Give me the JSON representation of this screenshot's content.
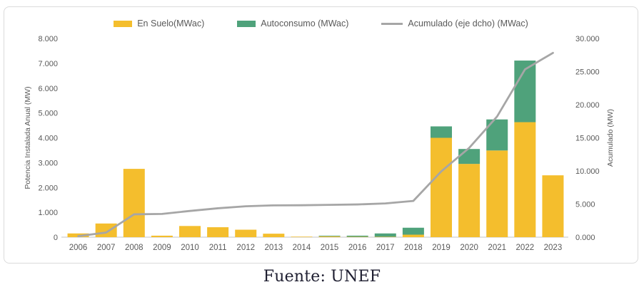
{
  "footer": {
    "text": "Fuente: UNEF"
  },
  "legend": {
    "items": [
      {
        "label": "En Suelo(MWac)",
        "swatch": "bar",
        "color": "#F4BE2D"
      },
      {
        "label": "Autoconsumo (MWac)",
        "swatch": "bar",
        "color": "#4FA27B"
      },
      {
        "label": "Acumulado (eje dcho) (MWac)",
        "swatch": "line",
        "color": "#A6A6A6"
      }
    ]
  },
  "chart_data": {
    "type": "bar",
    "subtype": "stacked-bars-with-secondary-axis-line",
    "title": "",
    "categories": [
      "2006",
      "2007",
      "2008",
      "2009",
      "2010",
      "2011",
      "2012",
      "2013",
      "2014",
      "2015",
      "2016",
      "2017",
      "2018",
      "2019",
      "2020",
      "2021",
      "2022",
      "2023"
    ],
    "series": [
      {
        "name": "En Suelo(MWac)",
        "type": "bar",
        "axis": "left",
        "color": "#F4BE2D",
        "values": [
          150,
          550,
          2750,
          60,
          450,
          400,
          300,
          140,
          20,
          35,
          15,
          15,
          100,
          4000,
          2950,
          3490,
          4630,
          2490
        ]
      },
      {
        "name": "Autoconsumo (MWac)",
        "type": "bar",
        "axis": "left",
        "color": "#4FA27B",
        "values": [
          0,
          0,
          0,
          0,
          0,
          0,
          0,
          0,
          0,
          25,
          45,
          135,
          280,
          460,
          600,
          1250,
          2480,
          0
        ]
      },
      {
        "name": "Acumulado (eje dcho) (MWac)",
        "type": "line",
        "axis": "right",
        "color": "#A6A6A6",
        "values": [
          150,
          700,
          3450,
          3510,
          3960,
          4360,
          4660,
          4800,
          4820,
          4880,
          4940,
          5090,
          5470,
          9930,
          13480,
          18220,
          25330,
          27820
        ]
      }
    ],
    "left_axis": {
      "title": "Potencia Instalada Anual (MW)",
      "range": [
        0,
        8000
      ],
      "tick_step": 1000,
      "tick_labels": [
        "0",
        "1.000",
        "2.000",
        "3.000",
        "4.000",
        "5.000",
        "6.000",
        "7.000",
        "8.000"
      ]
    },
    "right_axis": {
      "title": "Acumulado (MW)",
      "range": [
        0,
        30000
      ],
      "tick_step": 5000,
      "tick_labels": [
        "0.000",
        "5.000",
        "10.000",
        "15.000",
        "20.000",
        "25.000",
        "30.000"
      ]
    },
    "grid": false,
    "legend_position": "top",
    "text_color": "#595959",
    "baseline_color": "#d9d9d9"
  }
}
